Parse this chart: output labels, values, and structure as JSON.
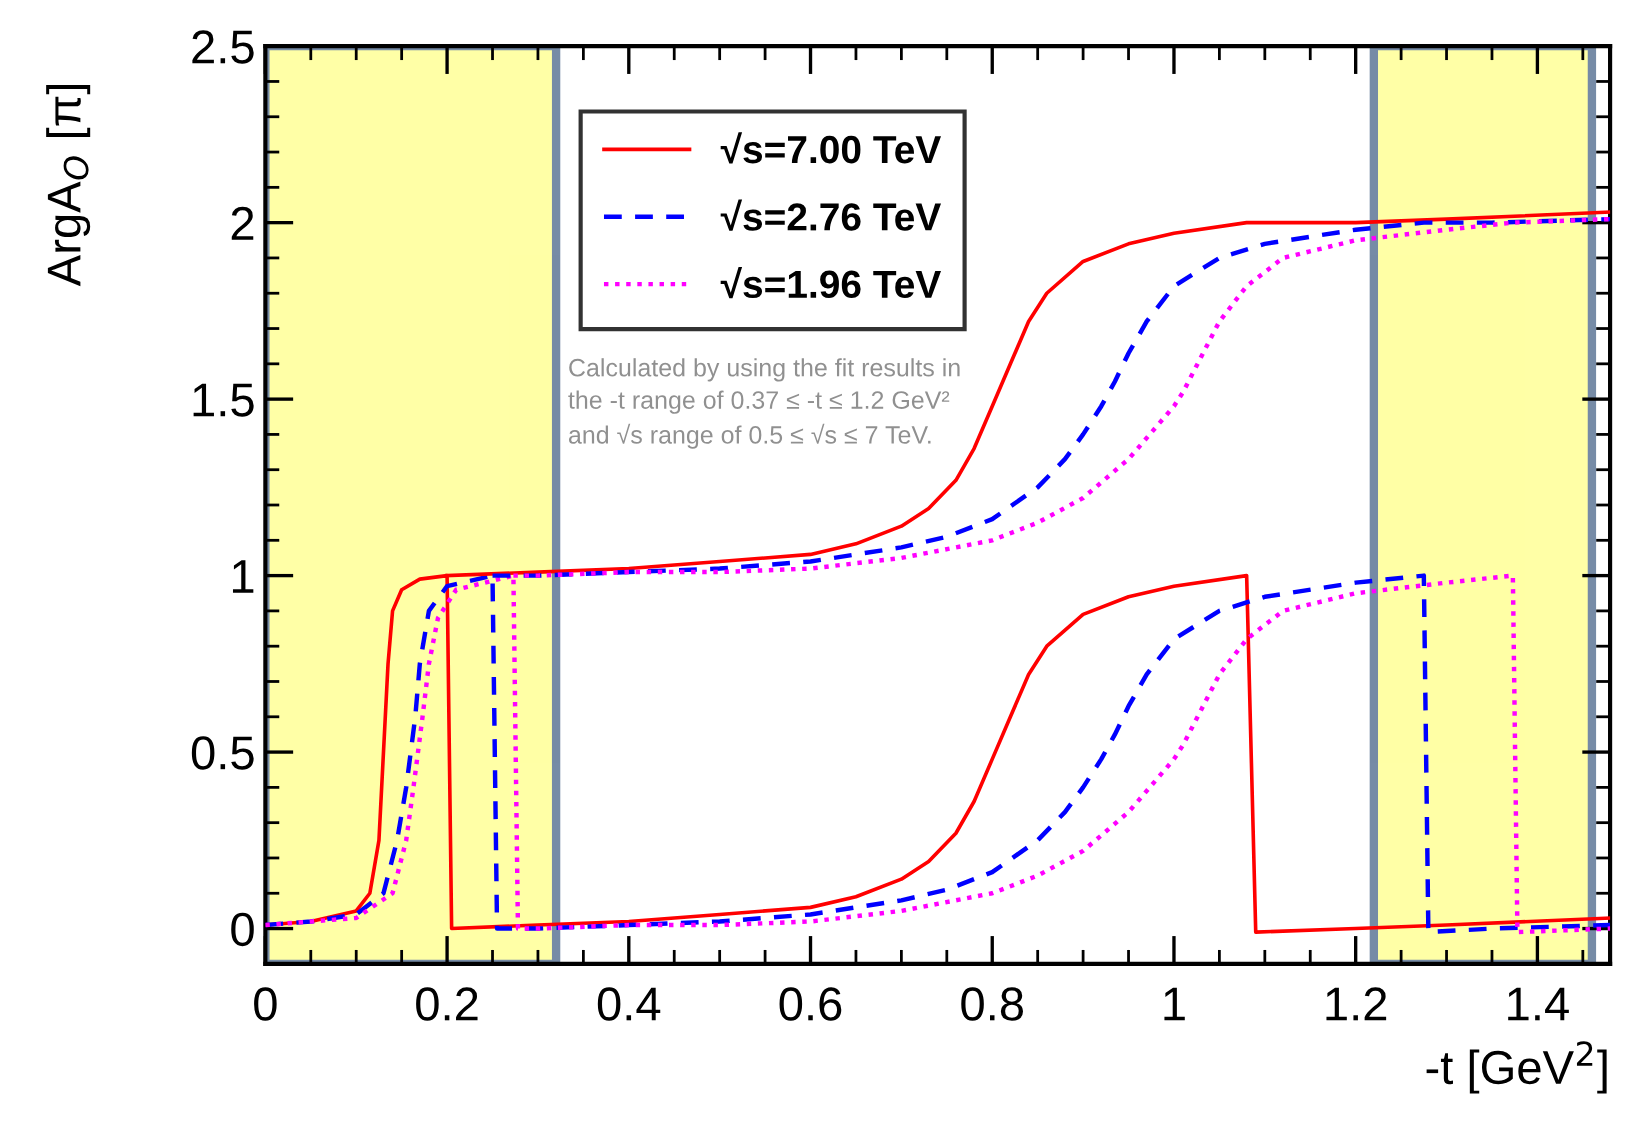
{
  "chart_data": {
    "type": "line",
    "ylabel": "ArgA$_{O}$ [π]",
    "xlabel": "-t [GeV$^{2}$]",
    "annotations": [
      "Calculated by using the fit results in\nthe -t range of 0.37 ≤ -t ≤ 1.2 GeV²\nand √s range of 0.5 ≤ √s ≤ 7 TeV."
    ],
    "xlim": [
      0,
      1.48
    ],
    "ylim": [
      -0.1,
      2.5
    ],
    "xticks": [
      0,
      {
        "value": 0.05,
        "label": null
      },
      {
        "value": 0.1,
        "label": null
      },
      {
        "value": 0.15,
        "label": null
      },
      0.2,
      {
        "value": 0.25,
        "label": null
      },
      {
        "value": 0.3,
        "label": null
      },
      {
        "value": 0.35,
        "label": null
      },
      0.4,
      {
        "value": 0.45,
        "label": null
      },
      {
        "value": 0.5,
        "label": null
      },
      {
        "value": 0.55,
        "label": null
      },
      0.6,
      {
        "value": 0.65,
        "label": null
      },
      {
        "value": 0.7,
        "label": null
      },
      {
        "value": 0.75,
        "label": null
      },
      0.8,
      {
        "value": 0.85,
        "label": null
      },
      {
        "value": 0.9,
        "label": null
      },
      {
        "value": 0.95,
        "label": null
      },
      1,
      {
        "value": 1.05,
        "label": null
      },
      {
        "value": 1.1,
        "label": null
      },
      {
        "value": 1.15,
        "label": null
      },
      1.2,
      {
        "value": 1.25,
        "label": null
      },
      {
        "value": 1.3,
        "label": null
      },
      {
        "value": 1.35,
        "label": null
      },
      1.4,
      {
        "value": 1.45,
        "label": null
      }
    ],
    "yticks": [
      0,
      {
        "value": 0.1,
        "label": null
      },
      {
        "value": 0.2,
        "label": null
      },
      {
        "value": 0.3,
        "label": null
      },
      {
        "value": 0.4,
        "label": null
      },
      0.5,
      {
        "value": 0.6,
        "label": null
      },
      {
        "value": 0.7,
        "label": null
      },
      {
        "value": 0.8,
        "label": null
      },
      {
        "value": 0.9,
        "label": null
      },
      1,
      {
        "value": 1.1,
        "label": null
      },
      {
        "value": 1.2,
        "label": null
      },
      {
        "value": 1.3,
        "label": null
      },
      {
        "value": 1.4,
        "label": null
      },
      1.5,
      {
        "value": 1.6,
        "label": null
      },
      {
        "value": 1.7,
        "label": null
      },
      {
        "value": 1.8,
        "label": null
      },
      {
        "value": 1.9,
        "label": null
      },
      2,
      {
        "value": 2.1,
        "label": null
      },
      {
        "value": 2.2,
        "label": null
      },
      {
        "value": 2.3,
        "label": null
      },
      {
        "value": 2.4,
        "label": null
      },
      2.5
    ],
    "grid": false,
    "legend": "top left",
    "marker": "none",
    "bands": [
      {
        "axis": "x",
        "from": 0,
        "to": 0.32,
        "color": "#ffff80"
      },
      {
        "axis": "x",
        "from": 1.22,
        "to": 1.46,
        "color": "#ffff80"
      }
    ],
    "series": [
      {
        "name": "√s=7.00 TeV",
        "color": "#ff0000",
        "line_style": "solid",
        "x": [
          0,
          0.05,
          0.1,
          0.115,
          0.125,
          0.13,
          0.135,
          0.14,
          0.15,
          0.17,
          0.2,
          0.205,
          0.3,
          0.4,
          0.5,
          0.6,
          0.65,
          0.7,
          0.73,
          0.76,
          0.78,
          0.8,
          0.82,
          0.84,
          0.86,
          0.9,
          0.95,
          1.0,
          1.08,
          1.09,
          1.2,
          1.3,
          1.48
        ],
        "values": [
          0.01,
          0.02,
          0.05,
          0.1,
          0.25,
          0.5,
          0.75,
          0.9,
          0.96,
          0.99,
          1.0,
          0.0,
          0.01,
          0.02,
          0.04,
          0.06,
          0.09,
          0.14,
          0.19,
          0.27,
          0.36,
          0.48,
          0.6,
          0.72,
          0.8,
          0.89,
          0.94,
          0.97,
          1.0,
          -0.01,
          0.0,
          0.01,
          0.03
        ]
      },
      {
        "name": "√s=2.76 TeV",
        "color": "#0000ff",
        "line_style": "dashed",
        "x": [
          0,
          0.05,
          0.1,
          0.13,
          0.145,
          0.155,
          0.16,
          0.165,
          0.17,
          0.18,
          0.2,
          0.25,
          0.255,
          0.3,
          0.4,
          0.5,
          0.6,
          0.7,
          0.75,
          0.8,
          0.85,
          0.88,
          0.9,
          0.92,
          0.935,
          0.95,
          0.97,
          1.0,
          1.05,
          1.1,
          1.2,
          1.275,
          1.28,
          1.35,
          1.48
        ],
        "values": [
          0.01,
          0.02,
          0.04,
          0.1,
          0.25,
          0.4,
          0.5,
          0.6,
          0.75,
          0.9,
          0.97,
          1.0,
          0.0,
          0.0,
          0.01,
          0.02,
          0.04,
          0.08,
          0.11,
          0.16,
          0.25,
          0.33,
          0.4,
          0.48,
          0.55,
          0.63,
          0.72,
          0.82,
          0.9,
          0.94,
          0.98,
          1.0,
          -0.01,
          0.0,
          0.01
        ]
      },
      {
        "name": "√s=1.96 TeV",
        "color": "#ff00ff",
        "line_style": "dotted",
        "x": [
          0,
          0.05,
          0.1,
          0.14,
          0.155,
          0.163,
          0.168,
          0.173,
          0.18,
          0.19,
          0.21,
          0.273,
          0.278,
          0.3,
          0.4,
          0.5,
          0.6,
          0.7,
          0.8,
          0.85,
          0.9,
          0.95,
          0.98,
          1.0,
          1.01,
          1.03,
          1.05,
          1.08,
          1.12,
          1.2,
          1.3,
          1.373,
          1.378,
          1.48
        ],
        "values": [
          0.01,
          0.02,
          0.03,
          0.1,
          0.25,
          0.4,
          0.5,
          0.6,
          0.75,
          0.88,
          0.96,
          1.0,
          0.0,
          0.0,
          0.01,
          0.01,
          0.02,
          0.05,
          0.1,
          0.15,
          0.22,
          0.33,
          0.42,
          0.48,
          0.52,
          0.62,
          0.72,
          0.82,
          0.9,
          0.95,
          0.98,
          1.0,
          -0.01,
          0.0
        ]
      },
      {
        "color": "#ff0000",
        "line_style": "solid",
        "x": [
          0.2,
          0.3,
          0.4,
          0.5,
          0.6,
          0.65,
          0.7,
          0.73,
          0.76,
          0.78,
          0.8,
          0.82,
          0.84,
          0.86,
          0.9,
          0.95,
          1.0,
          1.08,
          1.2,
          1.3,
          1.48
        ],
        "values": [
          1.0,
          1.01,
          1.02,
          1.04,
          1.06,
          1.09,
          1.14,
          1.19,
          1.27,
          1.36,
          1.48,
          1.6,
          1.72,
          1.8,
          1.89,
          1.94,
          1.97,
          2.0,
          2.0,
          2.01,
          2.03
        ]
      },
      {
        "color": "#0000ff",
        "line_style": "dashed",
        "x": [
          0.25,
          0.3,
          0.4,
          0.5,
          0.6,
          0.7,
          0.75,
          0.8,
          0.85,
          0.88,
          0.9,
          0.92,
          0.935,
          0.95,
          0.97,
          1.0,
          1.05,
          1.1,
          1.2,
          1.275,
          1.35,
          1.48
        ],
        "values": [
          1.0,
          1.0,
          1.01,
          1.02,
          1.04,
          1.08,
          1.11,
          1.16,
          1.25,
          1.33,
          1.4,
          1.48,
          1.55,
          1.63,
          1.72,
          1.82,
          1.9,
          1.94,
          1.98,
          2.0,
          2.0,
          2.01
        ]
      },
      {
        "color": "#ff00ff",
        "line_style": "dotted",
        "x": [
          0.273,
          0.3,
          0.4,
          0.5,
          0.6,
          0.7,
          0.8,
          0.85,
          0.9,
          0.95,
          0.98,
          1.0,
          1.01,
          1.03,
          1.05,
          1.08,
          1.12,
          1.2,
          1.3,
          1.373,
          1.48
        ],
        "values": [
          1.0,
          1.0,
          1.01,
          1.01,
          1.02,
          1.05,
          1.1,
          1.15,
          1.22,
          1.33,
          1.42,
          1.48,
          1.52,
          1.62,
          1.72,
          1.82,
          1.9,
          1.95,
          1.98,
          2.0,
          2.01
        ]
      }
    ]
  }
}
